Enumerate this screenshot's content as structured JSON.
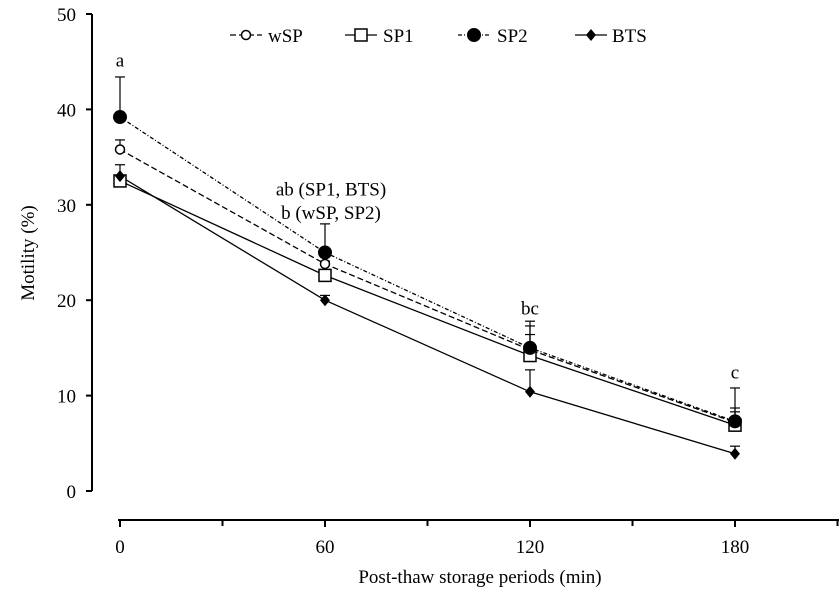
{
  "chart_data": {
    "type": "line",
    "xlabel": "Post-thaw storage periods (min)",
    "ylabel": "Motility (%)",
    "x": [
      0,
      60,
      120,
      180
    ],
    "xticks": [
      0,
      60,
      120,
      180
    ],
    "xlim": [
      0,
      210
    ],
    "ylim": [
      0,
      50
    ],
    "yticks": [
      0,
      10,
      20,
      30,
      40,
      50
    ],
    "grid": false,
    "legend_position": "top",
    "series": [
      {
        "name": "wSP",
        "marker": "open-circle",
        "line": "dashed-dotted",
        "values": [
          35.8,
          23.8,
          14.8,
          7.2
        ],
        "error": [
          1.0,
          1.5,
          2.5,
          1.5
        ]
      },
      {
        "name": "SP1",
        "marker": "open-square",
        "line": "solid",
        "values": [
          32.5,
          22.6,
          14.2,
          6.9
        ],
        "error": [
          0.5,
          1.5,
          2.2,
          1.4
        ]
      },
      {
        "name": "SP2",
        "marker": "filled-circle",
        "line": "dotted",
        "values": [
          39.2,
          25.0,
          15.0,
          7.3
        ],
        "error": [
          4.2,
          3.0,
          2.8,
          3.5
        ]
      },
      {
        "name": "BTS",
        "marker": "filled-diamond",
        "line": "solid",
        "values": [
          33.0,
          20.0,
          10.4,
          3.9
        ],
        "error": [
          1.2,
          0.5,
          2.3,
          0.8
        ]
      }
    ],
    "annotations": [
      {
        "text": "a",
        "x": 0,
        "y": 44.5
      },
      {
        "text": "ab (SP1, BTS)",
        "x": 60,
        "y": 31.0
      },
      {
        "text": "b (wSP, SP2)",
        "x": 60,
        "y": 28.5
      },
      {
        "text": "bc",
        "x": 120,
        "y": 18.5
      },
      {
        "text": "c",
        "x": 180,
        "y": 11.8
      }
    ]
  }
}
